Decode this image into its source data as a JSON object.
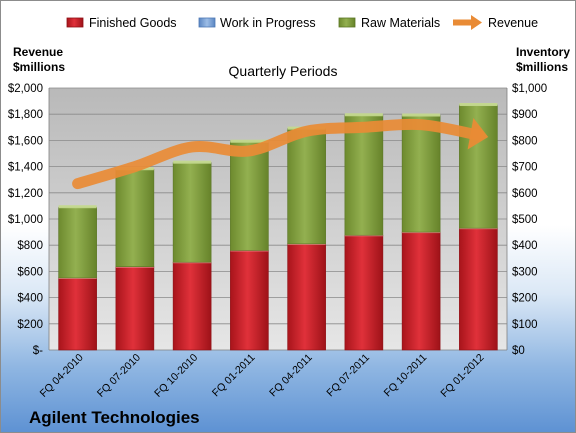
{
  "chart_data": {
    "type": "bar",
    "title": "Quarterly Periods",
    "company": "Agilent Technologies",
    "left_axis_label": [
      "Revenue",
      "$millions"
    ],
    "right_axis_label": [
      "Inventory",
      "$millions"
    ],
    "categories": [
      "FQ 04-2010",
      "FQ 07-2010",
      "FQ 10-2010",
      "FQ 01-2011",
      "FQ 04-2011",
      "FQ 07-2011",
      "FQ 10-2011",
      "FQ 01-2012"
    ],
    "left_ylim": [
      0,
      2000
    ],
    "left_ticks": [
      "$-",
      "$200",
      "$400",
      "$600",
      "$800",
      "$1,000",
      "$1,200",
      "$1,400",
      "$1,600",
      "$1,800",
      "$2,000"
    ],
    "right_ylim": [
      0,
      1000
    ],
    "right_ticks": [
      "$0",
      "$100",
      "$200",
      "$300",
      "$400",
      "$500",
      "$600",
      "$700",
      "$800",
      "$900",
      "$1,000"
    ],
    "legend_position": "top",
    "series": [
      {
        "name": "Finished Goods",
        "kind": "bar",
        "axis": "right",
        "color": "#cc1f27",
        "values": [
          275,
          318,
          335,
          380,
          405,
          438,
          450,
          465
        ]
      },
      {
        "name": "Work in Progress",
        "kind": "bar",
        "axis": "right",
        "color": "#6f9bd4",
        "values": [
          0,
          0,
          0,
          0,
          0,
          0,
          0,
          0
        ]
      },
      {
        "name": "Raw Materials",
        "kind": "bar",
        "axis": "right",
        "color": "#7d9a3a",
        "values": [
          270,
          372,
          380,
          415,
          440,
          458,
          445,
          470
        ]
      },
      {
        "name": "Revenue",
        "kind": "line",
        "axis": "left",
        "color": "#e98b35",
        "values": [
          1270,
          1400,
          1550,
          1520,
          1670,
          1700,
          1720,
          1640
        ]
      }
    ],
    "grid": true
  }
}
